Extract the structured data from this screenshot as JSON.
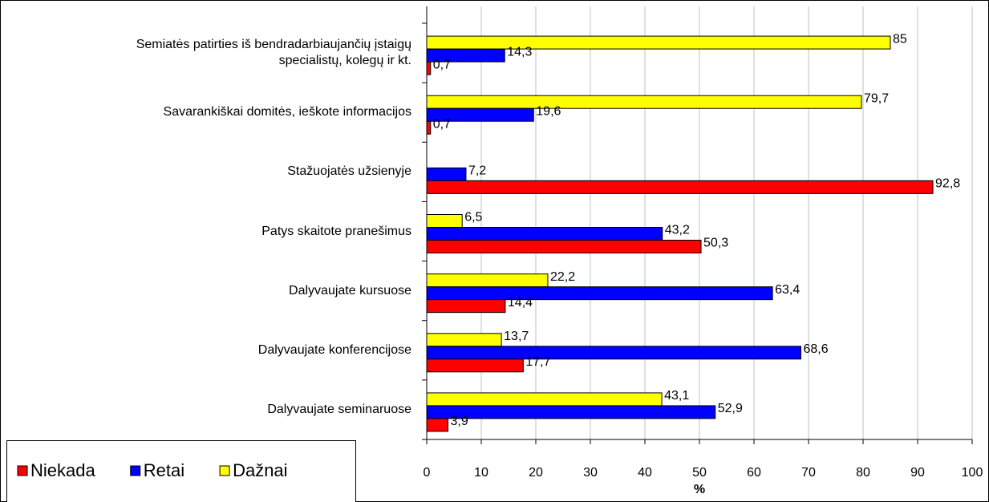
{
  "chart_data": {
    "type": "hbar",
    "categories": [
      "Semiatės patirties iš bendradarbiaujančių įstaigų\nspecialistų, kolegų ir kt.",
      "Savarankiškai domitės, ieškote informacijos",
      "Stažuojatės užsienyje",
      "Patys skaitote pranešimus",
      "Dalyvaujate kursuose",
      "Dalyvaujate konferencijose",
      "Dalyvaujate seminaruose"
    ],
    "series": [
      {
        "name": "Niekada",
        "color": "#ff0000",
        "values": [
          0.7,
          0.7,
          92.8,
          50.3,
          14.4,
          17.7,
          3.9
        ],
        "value_labels": [
          "0,7",
          "0,7",
          "92,8",
          "50,3",
          "14,4",
          "17,7",
          "3,9"
        ]
      },
      {
        "name": "Retai",
        "color": "#0000ff",
        "values": [
          14.3,
          19.6,
          7.2,
          43.2,
          63.4,
          68.6,
          52.9
        ],
        "value_labels": [
          "14,3",
          "19,6",
          "7,2",
          "43,2",
          "63,4",
          "68,6",
          "52,9"
        ]
      },
      {
        "name": "Dažnai",
        "color": "#ffff00",
        "values": [
          85,
          79.7,
          null,
          6.5,
          22.2,
          13.7,
          43.1
        ],
        "value_labels": [
          "85",
          "79,7",
          null,
          "6,5",
          "22,2",
          "13,7",
          "43,1"
        ]
      }
    ],
    "xlabel": "%",
    "xlim": [
      0,
      100
    ],
    "xticks": [
      0,
      10,
      20,
      30,
      40,
      50,
      60,
      70,
      80,
      90,
      100
    ],
    "grid": true,
    "legend": "bottom-left"
  }
}
